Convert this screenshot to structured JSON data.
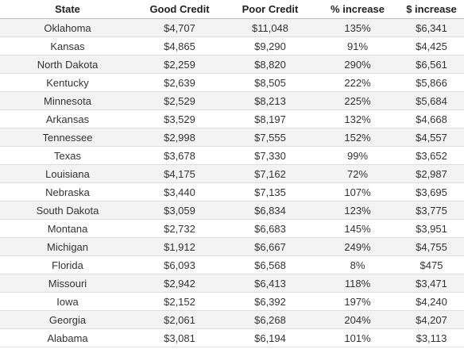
{
  "table": {
    "columns": [
      "State",
      "Good Credit",
      "Poor Credit",
      "% increase",
      "$ increase"
    ],
    "rows": [
      [
        "Oklahoma",
        "$4,707",
        "$11,048",
        "135%",
        "$6,341"
      ],
      [
        "Kansas",
        "$4,865",
        "$9,290",
        "91%",
        "$4,425"
      ],
      [
        "North Dakota",
        "$2,259",
        "$8,820",
        "290%",
        "$6,561"
      ],
      [
        "Kentucky",
        "$2,639",
        "$8,505",
        "222%",
        "$5,866"
      ],
      [
        "Minnesota",
        "$2,529",
        "$8,213",
        "225%",
        "$5,684"
      ],
      [
        "Arkansas",
        "$3,529",
        "$8,197",
        "132%",
        "$4,668"
      ],
      [
        "Tennessee",
        "$2,998",
        "$7,555",
        "152%",
        "$4,557"
      ],
      [
        "Texas",
        "$3,678",
        "$7,330",
        "99%",
        "$3,652"
      ],
      [
        "Louisiana",
        "$4,175",
        "$7,162",
        "72%",
        "$2,987"
      ],
      [
        "Nebraska",
        "$3,440",
        "$7,135",
        "107%",
        "$3,695"
      ],
      [
        "South Dakota",
        "$3,059",
        "$6,834",
        "123%",
        "$3,775"
      ],
      [
        "Montana",
        "$2,732",
        "$6,683",
        "145%",
        "$3,951"
      ],
      [
        "Michigan",
        "$1,912",
        "$6,667",
        "249%",
        "$4,755"
      ],
      [
        "Florida",
        "$6,093",
        "$6,568",
        "8%",
        "$475"
      ],
      [
        "Missouri",
        "$2,942",
        "$6,413",
        "118%",
        "$3,471"
      ],
      [
        "Iowa",
        "$2,152",
        "$6,392",
        "197%",
        "$4,240"
      ],
      [
        "Georgia",
        "$2,061",
        "$6,268",
        "204%",
        "$4,207"
      ],
      [
        "Alabama",
        "$3,081",
        "$6,194",
        "101%",
        "$3,113"
      ]
    ]
  }
}
